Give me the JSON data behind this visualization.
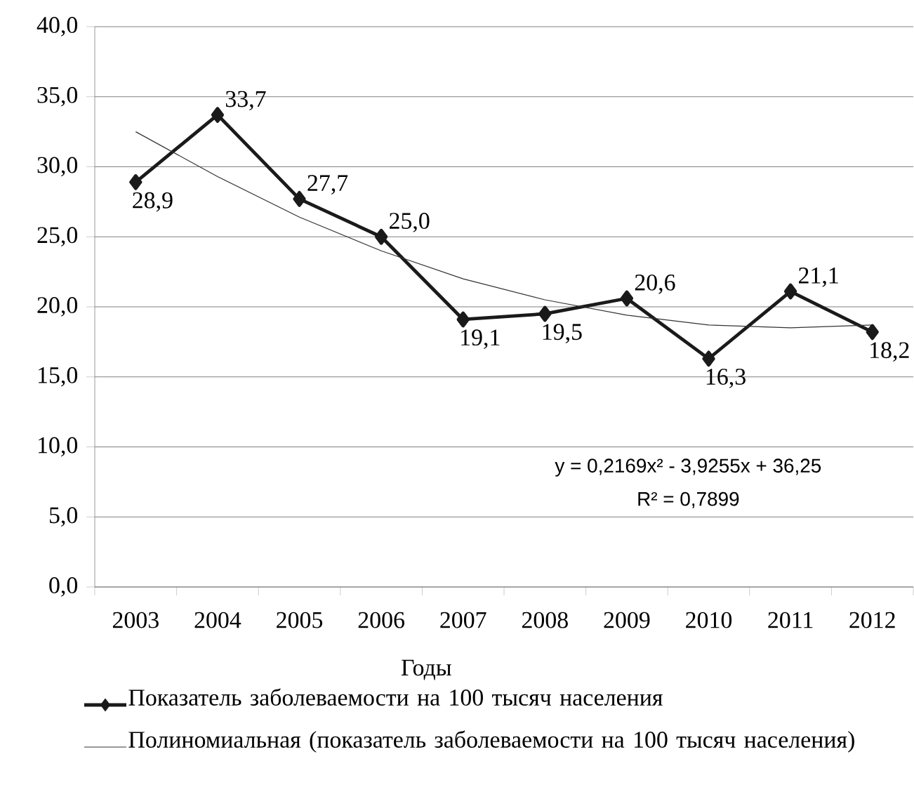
{
  "chart_data": {
    "type": "line",
    "xlabel": "Годы",
    "categories": [
      "2003",
      "2004",
      "2005",
      "2006",
      "2007",
      "2008",
      "2009",
      "2010",
      "2011",
      "2012"
    ],
    "series": [
      {
        "name": "Показатель заболеваемости на 100 тысяч населения",
        "color": "#1a1a1a",
        "marker": "diamond",
        "line_style": "solid",
        "values": [
          28.9,
          33.7,
          27.7,
          25.0,
          19.1,
          19.5,
          20.6,
          16.3,
          21.1,
          18.2
        ],
        "value_labels": [
          "28,9",
          "33,7",
          "27,7",
          "25,0",
          "19,1",
          "19,5",
          "20,6",
          "16,3",
          "21,1",
          "18,2"
        ]
      },
      {
        "name": "Полиномиальная (показатель заболеваемости на 100 тысяч населения)",
        "color": "#333333",
        "marker": "none",
        "line_style": "solid",
        "values": [
          32.5,
          29.3,
          26.4,
          24.0,
          22.0,
          20.5,
          19.4,
          18.7,
          18.5,
          18.7
        ]
      }
    ],
    "ylim": [
      0,
      40
    ],
    "yticks": [
      {
        "value": 0,
        "label": "0,0"
      },
      {
        "value": 5,
        "label": "5,0"
      },
      {
        "value": 10,
        "label": "10,0"
      },
      {
        "value": 15,
        "label": "15,0"
      },
      {
        "value": 20,
        "label": "20,0"
      },
      {
        "value": 25,
        "label": "25,0"
      },
      {
        "value": 30,
        "label": "30,0"
      },
      {
        "value": 35,
        "label": "35,0"
      },
      {
        "value": 40,
        "label": "40,0"
      }
    ],
    "grid": "y",
    "legend": "bottom",
    "annotations": [
      "y = 0,2169x² - 3,9255x + 36,25",
      "R² = 0,7899"
    ]
  }
}
